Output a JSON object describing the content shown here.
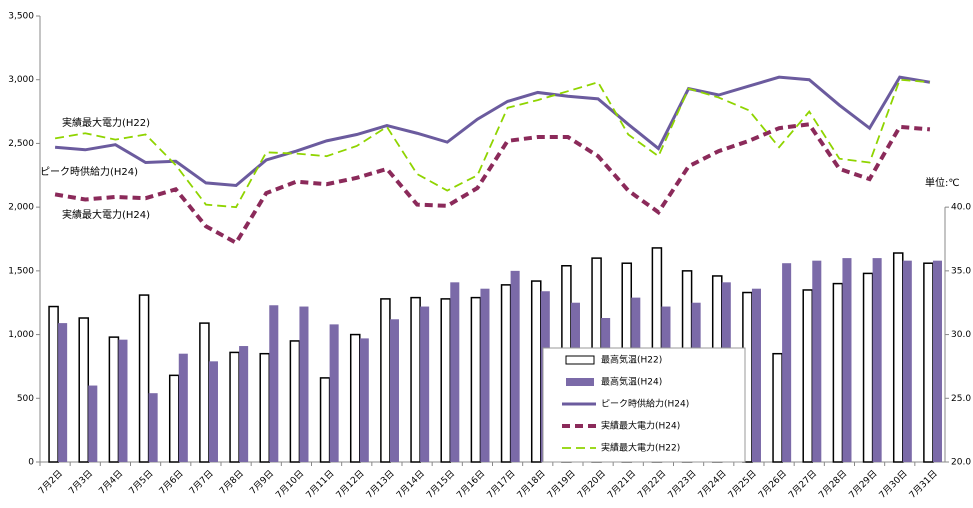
{
  "chart_data": {
    "type": "combo",
    "categories": [
      "7月2日",
      "7月3日",
      "7月4日",
      "7月5日",
      "7月6日",
      "7月7日",
      "7月8日",
      "7月9日",
      "7月10日",
      "7月11日",
      "7月12日",
      "7月13日",
      "7月14日",
      "7月15日",
      "7月16日",
      "7月17日",
      "7月18日",
      "7月19日",
      "7月20日",
      "7月21日",
      "7月22日",
      "7月23日",
      "7月24日",
      "7月25日",
      "7月26日",
      "7月27日",
      "7月28日",
      "7月29日",
      "7月30日",
      "7月31日"
    ],
    "series": [
      {
        "name": "最高気温(H22)",
        "kind": "bar",
        "axis": "y2",
        "color": "#ffffff",
        "values": [
          32.2,
          31.3,
          29.8,
          33.1,
          26.8,
          30.9,
          28.6,
          28.5,
          29.5,
          26.6,
          30.0,
          32.8,
          32.9,
          32.8,
          32.9,
          33.9,
          34.2,
          35.4,
          36.0,
          35.6,
          36.8,
          35.0,
          34.6,
          33.3,
          28.5,
          33.5,
          34.0,
          34.8,
          36.4,
          35.6
        ]
      },
      {
        "name": "最高気温(H24)",
        "kind": "bar",
        "axis": "y2",
        "color": "#7b6aa8",
        "values": [
          30.9,
          26.0,
          29.6,
          25.4,
          28.5,
          27.9,
          29.1,
          32.3,
          32.2,
          30.8,
          29.7,
          31.2,
          32.2,
          34.1,
          33.6,
          35.0,
          33.4,
          32.5,
          31.3,
          32.9,
          32.2,
          32.5,
          34.1,
          33.6,
          35.6,
          35.8,
          36.0,
          36.0,
          35.8,
          35.8
        ]
      },
      {
        "name": "ピーク時供給力(H24)",
        "kind": "line",
        "color": "#6b5b9e",
        "values": [
          2470,
          2450,
          2490,
          2350,
          2360,
          2190,
          2170,
          2370,
          2440,
          2520,
          2570,
          2640,
          2580,
          2510,
          2690,
          2830,
          2900,
          2870,
          2850,
          2650,
          2460,
          2930,
          2880,
          2950,
          3020,
          3000,
          2800,
          2620,
          3020,
          2980
        ]
      },
      {
        "name": "実績最大電力(H24)",
        "kind": "dash",
        "color": "#8b2a5a",
        "values": [
          2100,
          2060,
          2080,
          2070,
          2140,
          1850,
          1720,
          2110,
          2200,
          2180,
          2230,
          2300,
          2020,
          2010,
          2150,
          2520,
          2550,
          2550,
          2400,
          2130,
          1960,
          2320,
          2440,
          2520,
          2620,
          2650,
          2300,
          2220,
          2630,
          2610
        ]
      },
      {
        "name": "実績最大電力(H22)",
        "kind": "dashthin",
        "color": "#8fd400",
        "values": [
          2540,
          2580,
          2530,
          2570,
          2330,
          2020,
          2000,
          2430,
          2420,
          2400,
          2480,
          2630,
          2260,
          2130,
          2250,
          2780,
          2840,
          2910,
          2980,
          2570,
          2400,
          2930,
          2860,
          2760,
          2470,
          2750,
          2380,
          2350,
          3000,
          2980
        ]
      }
    ],
    "ylim": [
      0,
      3500
    ],
    "yticks": [
      0,
      500,
      {
        "value": 1000,
        "label": "1,000"
      },
      {
        "value": 1500,
        "label": "1,500"
      },
      {
        "value": 2000,
        "label": "2,000"
      },
      {
        "value": 2500,
        "label": "2,500"
      },
      {
        "value": 3000,
        "label": "3,000"
      },
      {
        "value": 3500,
        "label": "3,500"
      }
    ],
    "y2lim": [
      20,
      55
    ],
    "y2ticks": [
      {
        "value": 20,
        "label": "20.0"
      },
      {
        "value": 25,
        "label": "25.0"
      },
      {
        "value": 30,
        "label": "30.0"
      },
      {
        "value": 35,
        "label": "35.0"
      },
      {
        "value": 40,
        "label": "40.0"
      }
    ],
    "annotations": [
      "実績最大電力(H22)",
      "ピーク時供給力(H24)",
      "実績最大電力(H24)",
      "単位:℃"
    ]
  }
}
